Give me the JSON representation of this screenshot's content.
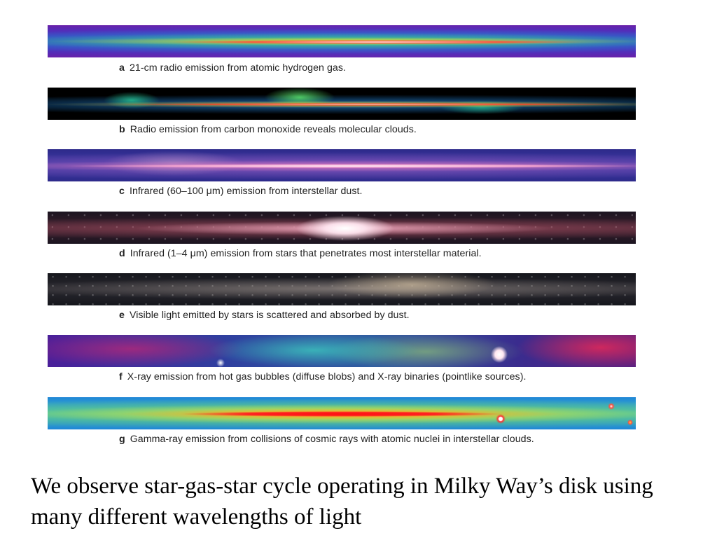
{
  "figure": {
    "panels": [
      {
        "letter": "a",
        "caption": "21-cm radio emission from atomic hydrogen gas."
      },
      {
        "letter": "b",
        "caption": "Radio emission from carbon monoxide reveals molecular clouds."
      },
      {
        "letter": "c",
        "caption": "Infrared (60–100 μm) emission from interstellar dust."
      },
      {
        "letter": "d",
        "caption": "Infrared (1–4 μm) emission from stars that penetrates most interstellar material."
      },
      {
        "letter": "e",
        "caption": "Visible light emitted by stars is scattered and absorbed by dust."
      },
      {
        "letter": "f",
        "caption": "X-ray emission from hot gas bubbles (diffuse blobs) and X-ray binaries (pointlike sources)."
      },
      {
        "letter": "g",
        "caption": "Gamma-ray emission from collisions of cosmic rays with atomic nuclei in interstellar clouds."
      }
    ]
  },
  "slide_text": "We observe star-gas-star cycle operating in Milky Way’s disk using many different wavelengths of light"
}
